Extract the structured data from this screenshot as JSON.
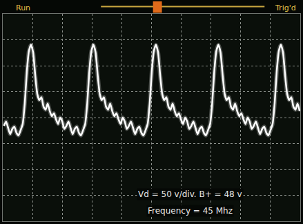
{
  "chart_data": {
    "type": "line",
    "status_labels": [
      "Run",
      "Trig'd"
    ],
    "annotations": [
      "Vd = 50 v/div. B+ = 48 v",
      "Frequency = 45 Mhz"
    ],
    "x": [
      0.04,
      0.11,
      0.18,
      0.25,
      0.32,
      0.39,
      0.46,
      0.53,
      0.6,
      0.67,
      0.74,
      0.81,
      0.88,
      0.95,
      1.02,
      1.09,
      1.16,
      1.23,
      1.3,
      1.37,
      1.44,
      1.51,
      1.58,
      1.65,
      1.72,
      1.79,
      1.86,
      1.93,
      2.0,
      2.07,
      2.14,
      2.21,
      2.28,
      2.35,
      2.42,
      2.49,
      2.56,
      2.63,
      2.7,
      2.77,
      2.84,
      2.91,
      2.98,
      3.05,
      3.12,
      3.19,
      3.26,
      3.33,
      3.4,
      3.47,
      3.54,
      3.61,
      3.68,
      3.75,
      3.82,
      3.89,
      3.96,
      4.03,
      4.1,
      4.17,
      4.24,
      4.31,
      4.38,
      4.45,
      4.52,
      4.59,
      4.66,
      4.73,
      4.8,
      4.87,
      4.94,
      5.01,
      5.08,
      5.15,
      5.22,
      5.29,
      5.36,
      5.43,
      5.5,
      5.57,
      5.64,
      5.71,
      5.78,
      5.85,
      5.92,
      5.99,
      6.06,
      6.13,
      6.2,
      6.27,
      6.34,
      6.41,
      6.48,
      6.55,
      6.62,
      6.69,
      6.76,
      6.83,
      6.9,
      6.97,
      7.04,
      7.11,
      7.18,
      7.25,
      7.32,
      7.39,
      7.46,
      7.53,
      7.6,
      7.67,
      7.74,
      7.81,
      7.88,
      7.95,
      8.02,
      8.09,
      8.16,
      8.23,
      8.3,
      8.37,
      8.44,
      8.51,
      8.58,
      8.65,
      8.72,
      8.79,
      8.86,
      8.93,
      9.0,
      9.07,
      9.14,
      9.21,
      9.28,
      9.35,
      9.42,
      9.49,
      9.56,
      9.63,
      9.7,
      9.77,
      9.84,
      9.91,
      9.98
    ],
    "series": [
      {
        "color": "#ffffff",
        "line_style": "solid",
        "values": [
          -0.32,
          -0.15,
          -0.4,
          -0.64,
          -0.44,
          -0.35,
          -0.59,
          -0.69,
          -0.49,
          -0.25,
          0.54,
          1.78,
          2.57,
          2.81,
          2.52,
          1.65,
          0.91,
          0.67,
          0.79,
          0.42,
          0.3,
          0.54,
          0.25,
          0.05,
          0.17,
          -0.07,
          -0.25,
          0.0,
          -0.15,
          -0.44,
          -0.32,
          -0.15,
          -0.4,
          -0.64,
          -0.44,
          -0.35,
          -0.59,
          -0.69,
          -0.49,
          -0.25,
          0.54,
          1.78,
          2.57,
          2.81,
          2.52,
          1.65,
          0.91,
          0.67,
          0.79,
          0.42,
          0.3,
          0.54,
          0.25,
          0.05,
          0.17,
          -0.07,
          -0.25,
          0.0,
          -0.15,
          -0.44,
          -0.32,
          -0.15,
          -0.4,
          -0.64,
          -0.44,
          -0.35,
          -0.59,
          -0.69,
          -0.49,
          -0.25,
          0.54,
          1.78,
          2.57,
          2.81,
          2.52,
          1.65,
          0.91,
          0.67,
          0.79,
          0.42,
          0.3,
          0.54,
          0.25,
          0.05,
          0.17,
          -0.07,
          -0.25,
          0.0,
          -0.15,
          -0.44,
          -0.32,
          -0.15,
          -0.4,
          -0.64,
          -0.44,
          -0.35,
          -0.59,
          -0.69,
          -0.49,
          -0.25,
          0.54,
          1.78,
          2.57,
          2.81,
          2.52,
          1.65,
          0.91,
          0.67,
          0.79,
          0.42,
          0.3,
          0.54,
          0.25,
          0.05,
          0.17,
          -0.07,
          -0.25,
          0.0,
          -0.15,
          -0.44,
          -0.32,
          -0.15,
          -0.4,
          -0.64,
          -0.44,
          -0.35,
          -0.59,
          -0.69,
          -0.49,
          -0.25,
          0.54,
          1.78,
          2.57,
          2.81,
          2.52,
          1.65,
          0.91,
          0.67,
          0.79,
          0.42,
          0.3,
          0.54,
          0.25
        ]
      }
    ],
    "xlim": [
      0,
      10
    ],
    "xticks": [
      0,
      1,
      2,
      3,
      4,
      5,
      6,
      7,
      8,
      9,
      10
    ],
    "ylim": [
      -4,
      4
    ],
    "yticks": [
      -4,
      -3,
      -2,
      -1,
      0,
      1,
      2,
      3,
      4
    ],
    "grid": true,
    "tick_labels": false
  }
}
